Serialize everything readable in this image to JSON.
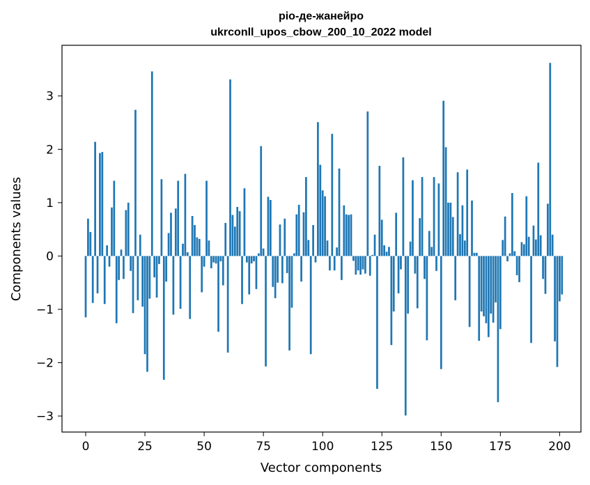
{
  "chart_data": {
    "type": "bar",
    "title": "ріо-де-жанейро",
    "subtitle": "ukrconll_upos_cbow_200_10_2022 model",
    "xlabel": "Vector components",
    "ylabel": "Components values",
    "xlim": [
      -10,
      209
    ],
    "ylim": [
      -3.3,
      3.95
    ],
    "xticks": [
      0,
      25,
      50,
      75,
      100,
      125,
      150,
      175,
      200
    ],
    "yticks": [
      -3,
      -2,
      -1,
      0,
      1,
      2,
      3
    ],
    "bar_color": "#1f77b4",
    "grid": false,
    "values": [
      -1.15,
      0.7,
      0.45,
      -0.88,
      2.14,
      -0.7,
      1.93,
      1.95,
      -0.9,
      0.2,
      -0.2,
      0.91,
      1.41,
      -1.26,
      -0.45,
      0.12,
      -0.43,
      0.86,
      1.0,
      -0.28,
      -1.07,
      2.74,
      -0.83,
      0.4,
      -0.95,
      -1.84,
      -2.17,
      -0.8,
      3.46,
      -0.4,
      -0.78,
      -0.15,
      1.44,
      -2.32,
      -0.48,
      0.43,
      0.81,
      -1.1,
      0.89,
      1.41,
      -0.99,
      0.23,
      1.54,
      0.07,
      -1.18,
      0.75,
      0.58,
      0.35,
      0.32,
      -0.68,
      -0.2,
      1.41,
      0.29,
      -0.23,
      -0.12,
      -0.14,
      -1.42,
      -0.1,
      -0.55,
      0.62,
      -1.81,
      3.31,
      0.77,
      0.55,
      0.92,
      0.84,
      -0.9,
      1.27,
      -0.12,
      -0.72,
      -0.14,
      -0.1,
      -0.62,
      0.05,
      2.06,
      0.14,
      -2.07,
      1.11,
      1.05,
      -0.58,
      -0.79,
      -0.5,
      0.59,
      -0.51,
      0.7,
      -0.32,
      -1.77,
      -0.97,
      0.05,
      0.78,
      0.96,
      -0.48,
      0.82,
      1.48,
      0.3,
      -1.84,
      0.58,
      -0.12,
      2.51,
      1.71,
      1.23,
      1.12,
      0.29,
      -0.27,
      2.29,
      -0.27,
      0.16,
      1.64,
      -0.45,
      0.95,
      0.78,
      0.77,
      0.78,
      -0.09,
      -0.35,
      -0.27,
      -0.35,
      -0.25,
      -0.33,
      2.71,
      -0.37,
      0.02,
      0.4,
      -2.49,
      1.69,
      0.68,
      0.2,
      0.08,
      0.17,
      -1.67,
      -1.04,
      0.81,
      -0.7,
      -0.25,
      1.85,
      -2.99,
      -1.08,
      0.27,
      1.42,
      -0.33,
      -0.98,
      0.71,
      1.48,
      -0.43,
      -1.58,
      0.47,
      0.17,
      1.48,
      -0.28,
      1.36,
      -2.12,
      2.91,
      2.04,
      1.0,
      1.0,
      0.73,
      -0.83,
      1.57,
      0.41,
      0.95,
      0.29,
      1.62,
      -1.33,
      1.04,
      0.06,
      0.06,
      -1.59,
      -1.04,
      -1.13,
      -1.26,
      -1.52,
      -1.08,
      -1.25,
      -0.87,
      -2.74,
      -1.37,
      0.3,
      0.74,
      -0.1,
      0.05,
      1.18,
      0.09,
      -0.36,
      -0.49,
      0.26,
      0.22,
      1.12,
      0.36,
      -1.63,
      0.57,
      0.31,
      1.75,
      0.39,
      -0.43,
      -0.71,
      0.98,
      3.62,
      0.4,
      -1.6,
      -2.08,
      -0.85,
      -0.72
    ]
  }
}
